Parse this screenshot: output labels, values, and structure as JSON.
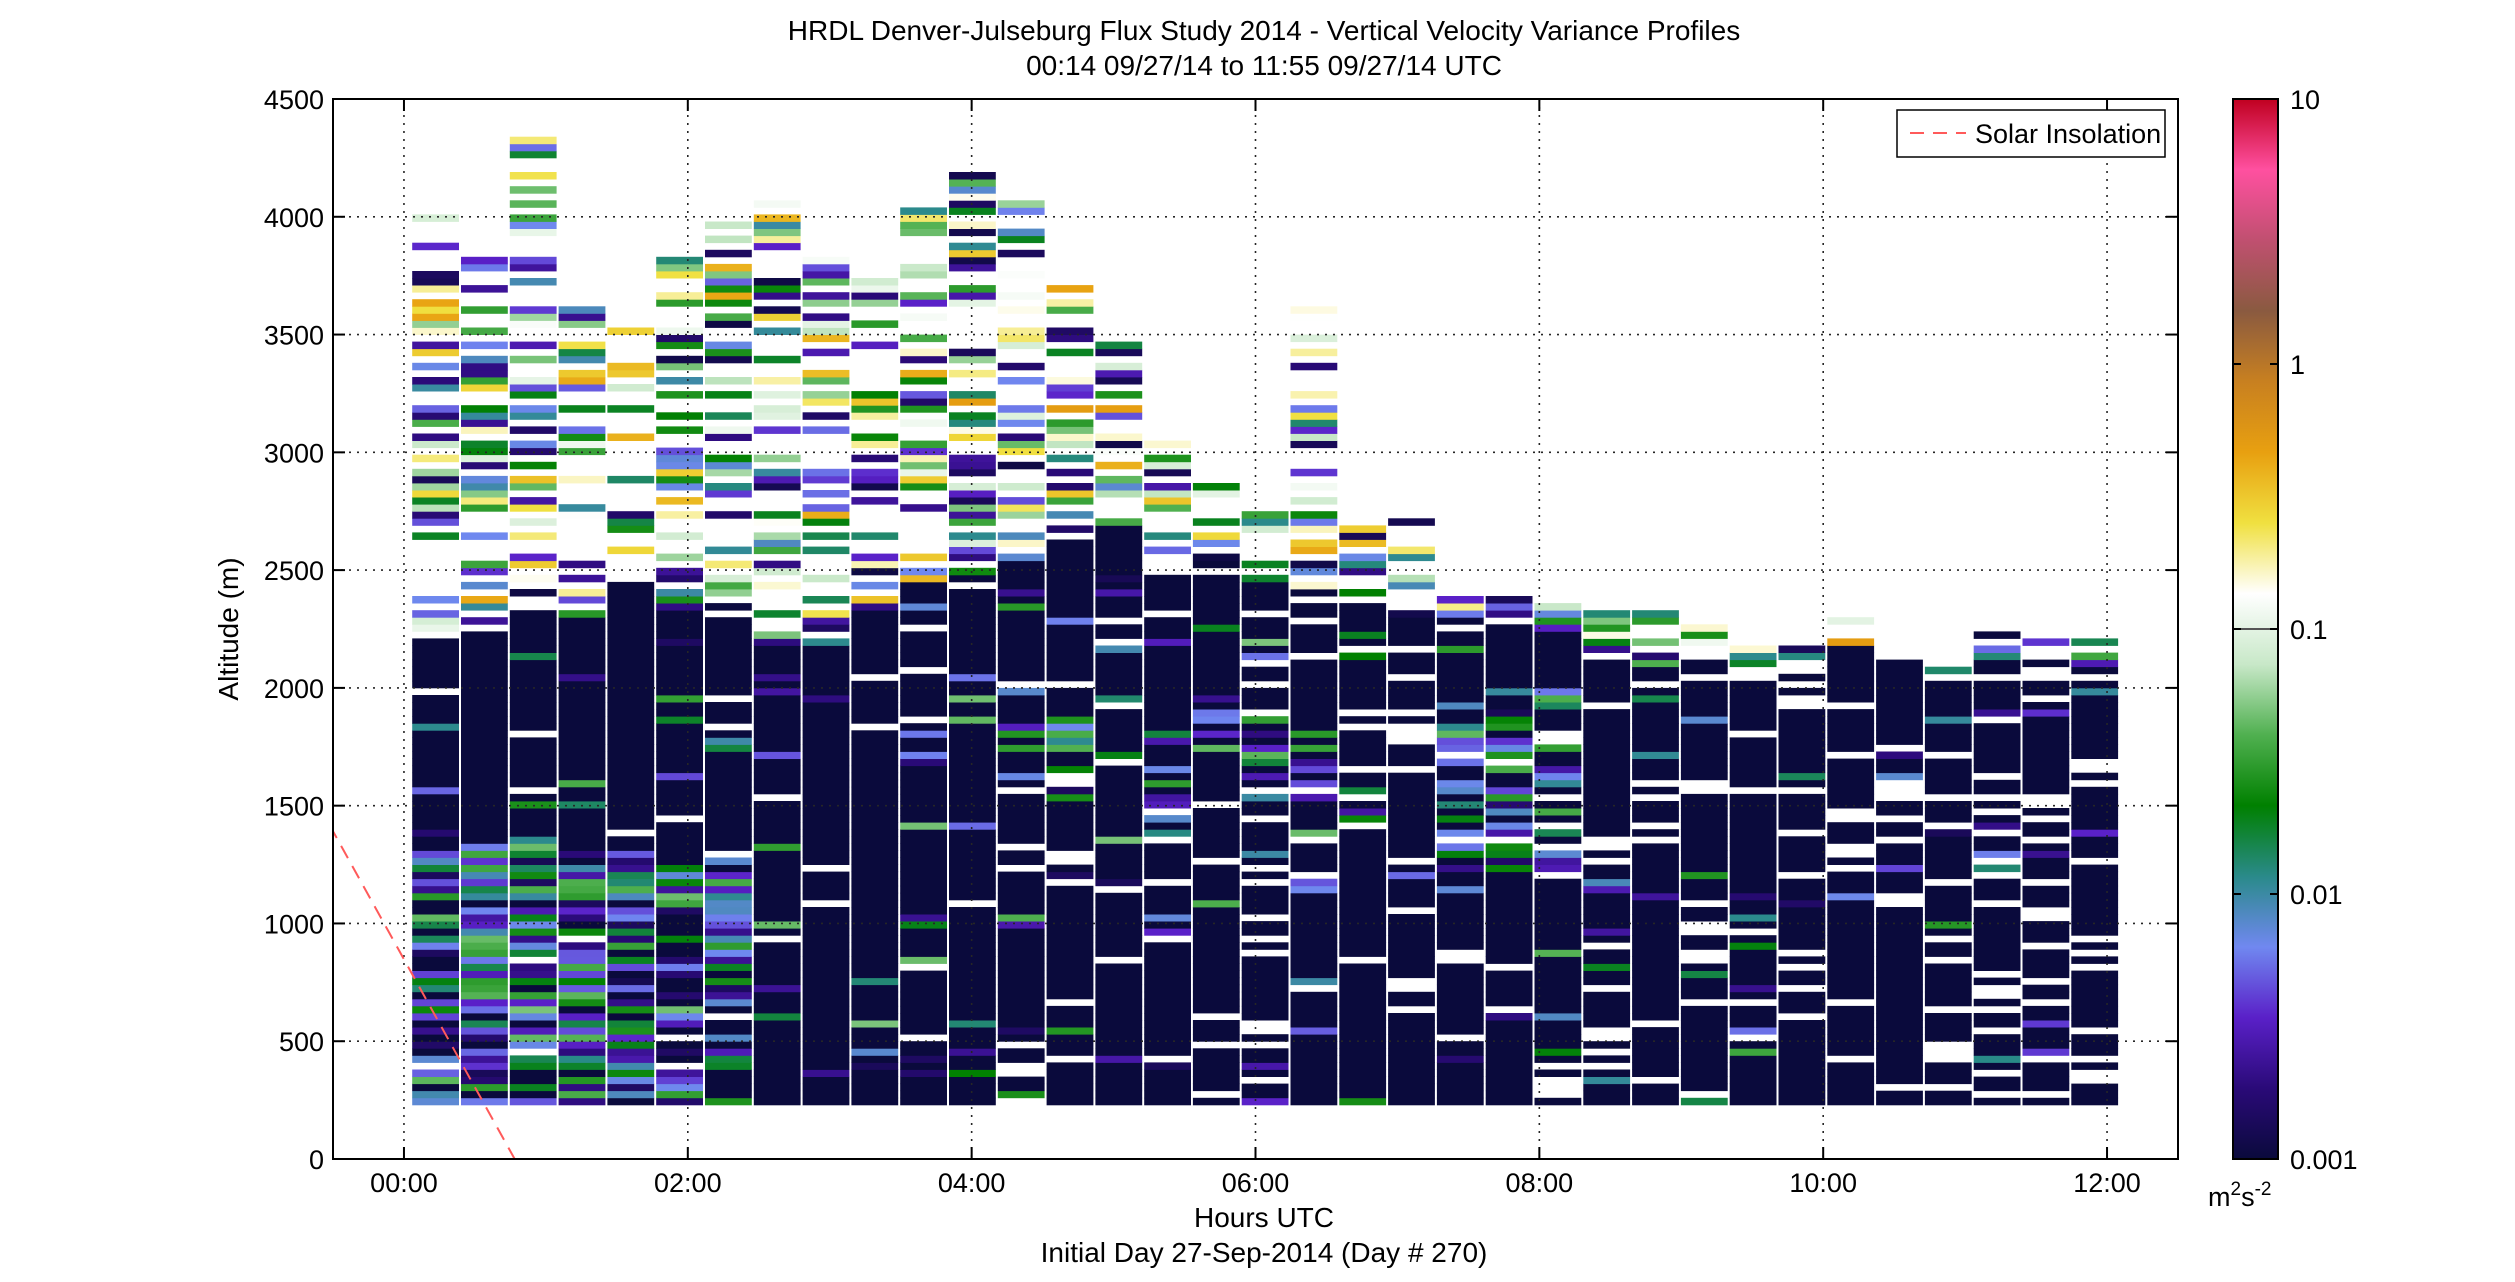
{
  "chart_data": {
    "type": "heatmap",
    "title": "HRDL Denver-Julseburg Flux Study 2014 - Vertical Velocity Variance Profiles",
    "subtitle": "00:14 09/27/14 to 11:55 09/27/14  UTC",
    "xlabel": "Hours UTC",
    "xlabel2": "Initial Day 27-Sep-2014 (Day # 270)",
    "ylabel": "Altitude (m)",
    "xlim": [
      -0.5,
      12.5
    ],
    "ylim": [
      0,
      4500
    ],
    "x_ticks": [
      0,
      2,
      4,
      6,
      8,
      10,
      12
    ],
    "x_tick_labels": [
      "00:00",
      "02:00",
      "04:00",
      "06:00",
      "08:00",
      "10:00",
      "12:00"
    ],
    "y_ticks": [
      0,
      500,
      1000,
      1500,
      2000,
      2500,
      3000,
      3500,
      4000,
      4500
    ],
    "y_tick_labels": [
      "0",
      "500",
      "1000",
      "1500",
      "2000",
      "2500",
      "3000",
      "3500",
      "4000",
      "4500"
    ],
    "grid": true,
    "legend": {
      "position": "top-right",
      "entries": [
        {
          "label": "Solar Insolation",
          "color": "#ff5a5a",
          "style": "dashed"
        }
      ]
    },
    "solar_insolation_line": {
      "x": [
        -0.6,
        0.78
      ],
      "y": [
        1500,
        0
      ]
    },
    "colorbar": {
      "scale": "log",
      "range": [
        0.001,
        10
      ],
      "ticks": [
        0.001,
        0.01,
        0.1,
        1,
        10
      ],
      "tick_labels": [
        "0.001",
        "0.01",
        "0.1",
        "1",
        "10"
      ],
      "unit_main": "m",
      "unit_sup1": "2",
      "unit_mid": "s",
      "unit_sup2": "-2",
      "marker_value": 0.1,
      "colors": [
        "#0a0a3c",
        "#2a0a78",
        "#5a20c8",
        "#7088f0",
        "#2a8a8a",
        "#008000",
        "#50b050",
        "#c8e8c8",
        "#ffffff",
        "#f0e040",
        "#e8a010",
        "#c88020",
        "#8a5a40",
        "#c05070",
        "#ff50a0",
        "#c00020"
      ]
    },
    "profiles": {
      "time_start": 0.23,
      "time_end": 11.92,
      "n_profiles": 35,
      "range_bin_m": 30,
      "lowest_altitude": 230,
      "dense_top": [
        2330,
        2350,
        2480,
        2440,
        2570,
        2450,
        2410,
        2300,
        2300,
        2480,
        2550,
        2600,
        2700,
        2850,
        2800,
        2600,
        2650,
        2550,
        2520,
        2500,
        2410,
        2400,
        2380,
        2350,
        2280,
        2300,
        2220,
        2200,
        2180,
        2300,
        2220,
        2180,
        2260,
        2220,
        2200
      ],
      "cloud_layer_top": [
        3990,
        3850,
        4360,
        3600,
        3540,
        3820,
        3980,
        4110,
        3850,
        3750,
        4100,
        4200,
        4100,
        3700,
        3500,
        3030,
        2880,
        2780,
        3680,
        2720,
        2720,
        2420,
        2340,
        2290,
        2310,
        2320,
        2270
      ],
      "value_range": [
        0.001,
        0.5
      ]
    }
  }
}
